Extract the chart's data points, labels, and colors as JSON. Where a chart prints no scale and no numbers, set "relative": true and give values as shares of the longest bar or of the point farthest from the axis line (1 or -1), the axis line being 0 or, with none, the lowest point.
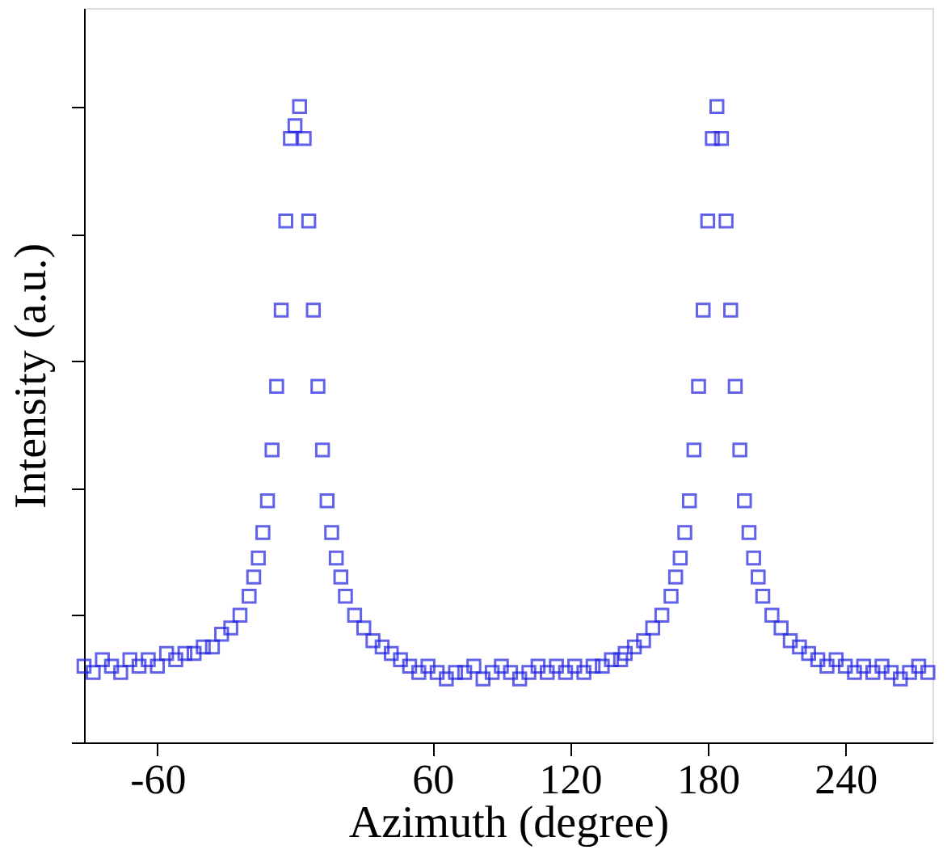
{
  "chart_data": {
    "type": "scatter",
    "xlabel": "Azimuth (degree)",
    "ylabel": "Intensity (a.u.)",
    "relative": true,
    "marker": "square",
    "grid": false,
    "xlim": [
      -92,
      278
    ],
    "xticks": [
      -60,
      60,
      120,
      180,
      240
    ],
    "x": [
      -92,
      -88,
      -84,
      -80,
      -76,
      -72,
      -68,
      -64,
      -60,
      -56,
      -52,
      -48,
      -44,
      -40,
      -36,
      -32,
      -28,
      -24,
      -20,
      -18,
      -16,
      -14,
      -12,
      -10,
      -8,
      -6,
      -4,
      -2,
      0,
      2,
      4,
      6,
      8,
      10,
      12,
      14,
      16,
      18,
      20,
      22,
      26,
      30,
      34,
      38,
      42,
      46,
      50,
      54,
      58,
      62,
      66,
      70,
      74,
      78,
      82,
      86,
      90,
      94,
      98,
      102,
      106,
      110,
      114,
      118,
      122,
      126,
      130,
      134,
      138,
      142,
      144,
      148,
      152,
      156,
      160,
      164,
      166,
      168,
      170,
      172,
      174,
      176,
      178,
      180,
      182,
      184,
      186,
      188,
      190,
      192,
      194,
      196,
      198,
      200,
      202,
      204,
      208,
      212,
      216,
      220,
      224,
      228,
      232,
      236,
      240,
      244,
      248,
      252,
      256,
      260,
      264,
      268,
      272,
      276
    ],
    "series": [
      {
        "color": "#1f1fe0",
        "values": [
          0.12,
          0.11,
          0.13,
          0.12,
          0.11,
          0.13,
          0.12,
          0.13,
          0.12,
          0.14,
          0.13,
          0.14,
          0.14,
          0.15,
          0.15,
          0.17,
          0.18,
          0.2,
          0.23,
          0.26,
          0.29,
          0.33,
          0.38,
          0.46,
          0.56,
          0.68,
          0.82,
          0.95,
          0.97,
          1.0,
          0.95,
          0.82,
          0.68,
          0.56,
          0.46,
          0.38,
          0.33,
          0.29,
          0.26,
          0.23,
          0.2,
          0.18,
          0.16,
          0.15,
          0.14,
          0.13,
          0.12,
          0.11,
          0.12,
          0.11,
          0.1,
          0.11,
          0.11,
          0.12,
          0.1,
          0.11,
          0.12,
          0.11,
          0.1,
          0.11,
          0.12,
          0.11,
          0.12,
          0.11,
          0.12,
          0.11,
          0.12,
          0.12,
          0.13,
          0.13,
          0.14,
          0.15,
          0.16,
          0.18,
          0.2,
          0.23,
          0.26,
          0.29,
          0.33,
          0.38,
          0.46,
          0.56,
          0.68,
          0.82,
          0.95,
          1.0,
          0.95,
          0.82,
          0.68,
          0.56,
          0.46,
          0.38,
          0.33,
          0.29,
          0.26,
          0.23,
          0.2,
          0.18,
          0.16,
          0.15,
          0.14,
          0.13,
          0.12,
          0.13,
          0.12,
          0.11,
          0.12,
          0.11,
          0.12,
          0.11,
          0.1,
          0.11,
          0.12,
          0.11
        ]
      }
    ]
  }
}
